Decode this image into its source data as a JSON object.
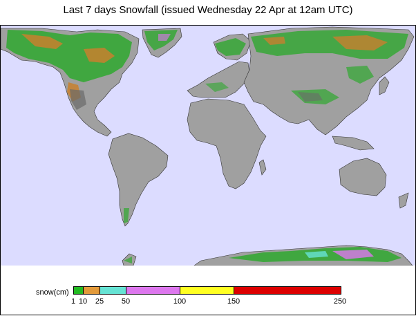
{
  "title": "Last 7 days Snowfall (issued Wednesday 22 Apr at 12am UTC)",
  "map": {
    "ocean_color": "#dcdcff",
    "land_color": "#a0a0a0",
    "continents": [
      "north-america",
      "greenland",
      "south-america",
      "europe",
      "africa",
      "asia",
      "australia",
      "antarctica"
    ]
  },
  "legend": {
    "label": "snow(cm)",
    "segments": [
      {
        "from": 1,
        "to": 10,
        "color": "#22bb22"
      },
      {
        "from": 10,
        "to": 25,
        "color": "#e39a3a"
      },
      {
        "from": 25,
        "to": 50,
        "color": "#66e3d4"
      },
      {
        "from": 50,
        "to": 100,
        "color": "#dd77ee"
      },
      {
        "from": 100,
        "to": 150,
        "color": "#ffff22"
      },
      {
        "from": 150,
        "to": 250,
        "color": "#dd0000"
      }
    ],
    "ticks": [
      "1",
      "10",
      "25",
      "50",
      "100",
      "150",
      "250"
    ]
  }
}
